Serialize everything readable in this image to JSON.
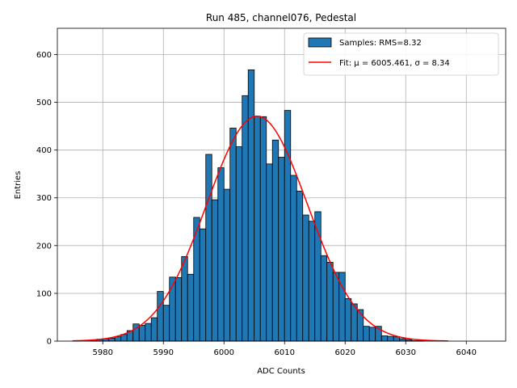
{
  "chart_data": {
    "type": "bar",
    "title": "Run 485, channel076, Pedestal",
    "xlabel": "ADC Counts",
    "ylabel": "Entries",
    "xlim": [
      5972.5,
      6046.5
    ],
    "ylim": [
      0,
      655
    ],
    "grid": true,
    "legend_position": "top-right",
    "xticks": [
      5980,
      5990,
      6000,
      6010,
      6020,
      6030,
      6040
    ],
    "yticks": [
      0,
      100,
      200,
      300,
      400,
      500,
      600
    ],
    "histogram": {
      "name": "Samples: RMS=8.32",
      "color": "#1f77b4",
      "bin_width": 1,
      "bin_starts": [
        5978,
        5979,
        5980,
        5981,
        5982,
        5983,
        5984,
        5985,
        5986,
        5987,
        5988,
        5989,
        5990,
        5991,
        5992,
        5993,
        5994,
        5995,
        5996,
        5997,
        5998,
        5999,
        6000,
        6001,
        6002,
        6003,
        6004,
        6005,
        6006,
        6007,
        6008,
        6009,
        6010,
        6011,
        6012,
        6013,
        6014,
        6015,
        6016,
        6017,
        6018,
        6019,
        6020,
        6021,
        6022,
        6023,
        6024,
        6025,
        6026,
        6027,
        6028,
        6029,
        6030,
        6031,
        6032
      ],
      "counts": [
        2,
        4,
        5,
        6,
        9,
        14,
        22,
        36,
        33,
        37,
        49,
        104,
        75,
        134,
        133,
        177,
        140,
        259,
        235,
        391,
        296,
        363,
        318,
        446,
        407,
        514,
        568,
        471,
        470,
        371,
        421,
        385,
        483,
        347,
        314,
        264,
        251,
        271,
        179,
        165,
        144,
        144,
        89,
        78,
        66,
        31,
        29,
        31,
        11,
        10,
        9,
        5,
        3,
        1,
        1
      ]
    },
    "fit": {
      "name": "Fit: μ = 6005.461, σ = 8.34",
      "color": "#ff0000",
      "mu": 6005.461,
      "sigma": 8.34,
      "amplitude": 471,
      "x_range": [
        5975,
        6037
      ]
    }
  }
}
